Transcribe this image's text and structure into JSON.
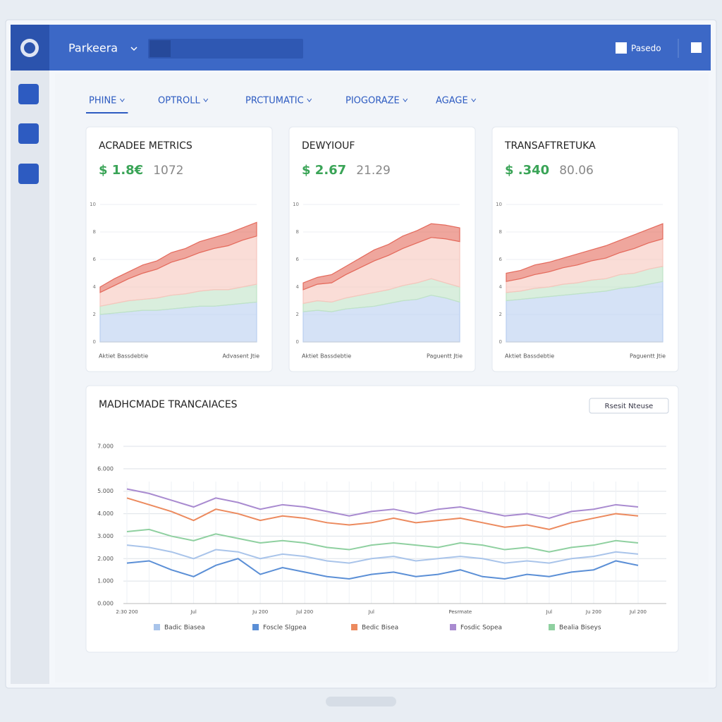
{
  "header": {
    "brand": "Parkeera",
    "action": "Pasedo"
  },
  "filters": [
    "PHINE",
    "OPTROLL",
    "PRCTUMATIC",
    "PIOGORAZE",
    "AGAGE"
  ],
  "cards": [
    {
      "title": "ACRADEE METRICS",
      "value": "$ 1.8€",
      "secondary": "1072",
      "footer": [
        "Aktiet Bassdebtie",
        "Advasent Jtie"
      ],
      "chart": {
        "type": "stacked-area",
        "ylim": [
          0,
          10
        ],
        "yticks": [
          0,
          2,
          4,
          6,
          8,
          10
        ],
        "series": [
          {
            "color": "#b9cff0",
            "values": [
              2.0,
              2.1,
              2.2,
              2.3,
              2.3,
              2.4,
              2.5,
              2.6,
              2.6,
              2.7,
              2.8,
              2.9
            ]
          },
          {
            "color": "#bfe3c6",
            "values": [
              0.6,
              0.7,
              0.8,
              0.8,
              0.9,
              1.0,
              1.0,
              1.1,
              1.2,
              1.1,
              1.2,
              1.3
            ]
          },
          {
            "color": "#f6c6bd",
            "values": [
              1.0,
              1.3,
              1.6,
              1.9,
              2.1,
              2.4,
              2.6,
              2.8,
              3.0,
              3.2,
              3.4,
              3.5
            ]
          },
          {
            "color": "#e46a5c",
            "values": [
              0.4,
              0.5,
              0.5,
              0.6,
              0.6,
              0.7,
              0.7,
              0.8,
              0.8,
              0.9,
              0.9,
              1.0
            ]
          }
        ]
      }
    },
    {
      "title": "DEWYIOUF",
      "value": "$ 2.67",
      "secondary": "21.29",
      "footer": [
        "Aktiet Bassdebtie",
        "Paguentt Jtie"
      ],
      "chart": {
        "type": "stacked-area",
        "ylim": [
          0,
          10
        ],
        "yticks": [
          0,
          2,
          4,
          6,
          8,
          10
        ],
        "series": [
          {
            "color": "#b9cff0",
            "values": [
              2.2,
              2.3,
              2.2,
              2.4,
              2.5,
              2.6,
              2.8,
              3.0,
              3.1,
              3.4,
              3.2,
              2.9
            ]
          },
          {
            "color": "#bfe3c6",
            "values": [
              0.6,
              0.7,
              0.7,
              0.8,
              0.9,
              1.0,
              1.0,
              1.1,
              1.2,
              1.2,
              1.1,
              1.1
            ]
          },
          {
            "color": "#f6c6bd",
            "values": [
              1.0,
              1.2,
              1.4,
              1.7,
              2.0,
              2.3,
              2.5,
              2.7,
              2.9,
              3.0,
              3.2,
              3.3
            ]
          },
          {
            "color": "#e46a5c",
            "values": [
              0.5,
              0.5,
              0.6,
              0.6,
              0.7,
              0.8,
              0.8,
              0.9,
              0.9,
              1.0,
              1.0,
              1.0
            ]
          }
        ]
      }
    },
    {
      "title": "TRANSAFTRETUKA",
      "value": "$ .340",
      "secondary": "80.06",
      "footer": [
        "Aktiet Bassdebtie",
        "Paguentt Jtie"
      ],
      "chart": {
        "type": "stacked-area",
        "ylim": [
          0,
          10
        ],
        "yticks": [
          0,
          2,
          4,
          6,
          8,
          10
        ],
        "series": [
          {
            "color": "#b9cff0",
            "values": [
              3.0,
              3.1,
              3.2,
              3.3,
              3.4,
              3.5,
              3.6,
              3.7,
              3.9,
              4.0,
              4.2,
              4.4
            ]
          },
          {
            "color": "#bfe3c6",
            "values": [
              0.6,
              0.6,
              0.7,
              0.7,
              0.8,
              0.8,
              0.9,
              0.9,
              1.0,
              1.0,
              1.1,
              1.1
            ]
          },
          {
            "color": "#f6c6bd",
            "values": [
              0.8,
              0.9,
              1.0,
              1.1,
              1.2,
              1.3,
              1.4,
              1.5,
              1.6,
              1.8,
              1.9,
              2.0
            ]
          },
          {
            "color": "#e46a5c",
            "values": [
              0.6,
              0.6,
              0.7,
              0.7,
              0.7,
              0.8,
              0.8,
              0.9,
              0.9,
              1.0,
              1.0,
              1.1
            ]
          }
        ]
      }
    }
  ],
  "chart_data": {
    "type": "line",
    "title": "MADHCMADE TRANCAIACES",
    "button": "Rsesit Nteuse",
    "categories": [
      "2:30 200",
      null,
      null,
      "Jul",
      null,
      null,
      "Ju 200",
      null,
      "Jul 200",
      null,
      null,
      "Jul",
      null,
      null,
      null,
      "Pesrmate",
      null,
      null,
      null,
      "Jul",
      null,
      "Ju 200",
      null,
      "Jul 200"
    ],
    "ylim": [
      0,
      7
    ],
    "yticks": [
      {
        "value": 0,
        "label": "0.000"
      },
      {
        "value": 1,
        "label": "1.000"
      },
      {
        "value": 2,
        "label": "2.000"
      },
      {
        "value": 3,
        "label": "3.000"
      },
      {
        "value": 4,
        "label": "4.000"
      },
      {
        "value": 5,
        "label": "5.000"
      },
      {
        "value": 6,
        "label": "6.000"
      },
      {
        "value": 7,
        "label": "7.000"
      }
    ],
    "grid": true,
    "series": [
      {
        "name": "Badic Biasea",
        "color": "#a9c4ea",
        "values": [
          2.6,
          2.5,
          2.3,
          2.0,
          2.4,
          2.3,
          2.0,
          2.2,
          2.1,
          1.9,
          1.8,
          2.0,
          2.1,
          1.9,
          2.0,
          2.1,
          2.0,
          1.8,
          1.9,
          1.8,
          2.0,
          2.1,
          2.3,
          2.2
        ]
      },
      {
        "name": "Foscle Slgpea",
        "color": "#5b8fd6",
        "values": [
          1.8,
          1.9,
          1.5,
          1.2,
          1.7,
          2.0,
          1.3,
          1.6,
          1.4,
          1.2,
          1.1,
          1.3,
          1.4,
          1.2,
          1.3,
          1.5,
          1.2,
          1.1,
          1.3,
          1.2,
          1.4,
          1.5,
          1.9,
          1.7
        ]
      },
      {
        "name": "Bedic Bisea",
        "color": "#ec8a5e",
        "values": [
          4.7,
          4.4,
          4.1,
          3.7,
          4.2,
          4.0,
          3.7,
          3.9,
          3.8,
          3.6,
          3.5,
          3.6,
          3.8,
          3.6,
          3.7,
          3.8,
          3.6,
          3.4,
          3.5,
          3.3,
          3.6,
          3.8,
          4.0,
          3.9
        ]
      },
      {
        "name": "Fosdic Sopea",
        "color": "#a98bd0",
        "values": [
          5.1,
          4.9,
          4.6,
          4.3,
          4.7,
          4.5,
          4.2,
          4.4,
          4.3,
          4.1,
          3.9,
          4.1,
          4.2,
          4.0,
          4.2,
          4.3,
          4.1,
          3.9,
          4.0,
          3.8,
          4.1,
          4.2,
          4.4,
          4.3
        ]
      },
      {
        "name": "Bealia Biseys",
        "color": "#8fd0a0",
        "values": [
          3.2,
          3.3,
          3.0,
          2.8,
          3.1,
          2.9,
          2.7,
          2.8,
          2.7,
          2.5,
          2.4,
          2.6,
          2.7,
          2.6,
          2.5,
          2.7,
          2.6,
          2.4,
          2.5,
          2.3,
          2.5,
          2.6,
          2.8,
          2.7
        ]
      }
    ]
  }
}
